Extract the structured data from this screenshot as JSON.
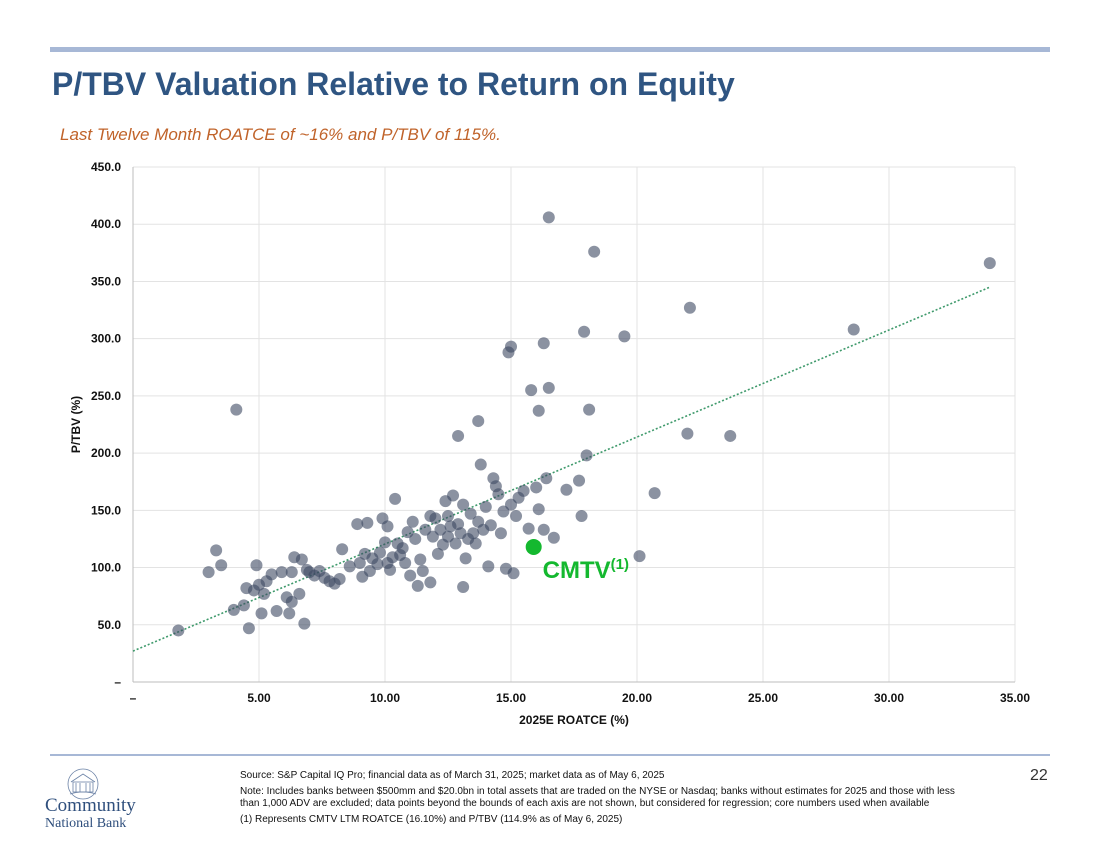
{
  "page": {
    "title": "P/TBV Valuation Relative to Return on Equity",
    "subtitle": "Last Twelve Month ROATCE of ~16% and P/TBV of 115%.",
    "page_number": "22",
    "accent_color": "#2f5582",
    "subtitle_color": "#c0632a",
    "rule_color": "#a7b8d6"
  },
  "footer": {
    "source": "Source: S&P Capital IQ Pro; financial data as of March 31, 2025; market data as of May 6, 2025",
    "note": "Note: Includes banks between $500mm and $20.0bn in total assets that are traded on the NYSE or Nasdaq; banks without estimates for 2025 and those with less than 1,000 ADV are excluded; data points beyond the bounds of each axis are not shown, but considered for regression; core numbers used when available",
    "footnote": "(1) Represents CMTV LTM ROATCE (16.10%) and P/TBV (114.9% as of May 6, 2025)"
  },
  "logo": {
    "line1": "Community",
    "line2": "National Bank",
    "icon": "bank-building-logo"
  },
  "chart_data": {
    "type": "scatter",
    "xlabel": "2025E ROATCE (%)",
    "ylabel": "P/TBV (%)",
    "xlim": [
      0,
      35
    ],
    "ylim": [
      0,
      450
    ],
    "x_ticks": [
      0,
      5,
      10,
      15,
      20,
      25,
      30,
      35
    ],
    "x_tick_labels": [
      "–",
      "5.00",
      "10.00",
      "15.00",
      "20.00",
      "25.00",
      "30.00",
      "35.00"
    ],
    "y_ticks": [
      0,
      50,
      100,
      150,
      200,
      250,
      300,
      350,
      400,
      450
    ],
    "y_tick_labels": [
      "–",
      "50.0",
      "100.0",
      "150.0",
      "200.0",
      "250.0",
      "300.0",
      "350.0",
      "400.0",
      "450.0"
    ],
    "grid": true,
    "point_color": "#3e4a63",
    "trendline": {
      "type": "linear",
      "x": [
        0,
        34
      ],
      "y": [
        27,
        345
      ],
      "color": "#3f9a6c"
    },
    "highlight": {
      "label": "CMTV",
      "superscript": "(1)",
      "x": 15.9,
      "y": 118,
      "color": "#14b82f"
    },
    "points": [
      [
        1.8,
        45
      ],
      [
        3.0,
        96
      ],
      [
        3.3,
        115
      ],
      [
        3.5,
        102
      ],
      [
        4.0,
        63
      ],
      [
        4.1,
        238
      ],
      [
        4.4,
        67
      ],
      [
        4.5,
        82
      ],
      [
        4.6,
        47
      ],
      [
        4.8,
        80
      ],
      [
        4.9,
        102
      ],
      [
        5.0,
        85
      ],
      [
        5.1,
        60
      ],
      [
        5.2,
        77
      ],
      [
        5.3,
        88
      ],
      [
        5.5,
        94
      ],
      [
        5.7,
        62
      ],
      [
        5.9,
        96
      ],
      [
        6.1,
        74
      ],
      [
        6.2,
        60
      ],
      [
        6.3,
        70
      ],
      [
        6.3,
        96
      ],
      [
        6.4,
        109
      ],
      [
        6.6,
        77
      ],
      [
        6.7,
        107
      ],
      [
        6.8,
        51
      ],
      [
        6.9,
        98
      ],
      [
        7.0,
        96
      ],
      [
        7.2,
        93
      ],
      [
        7.4,
        97
      ],
      [
        7.6,
        91
      ],
      [
        7.8,
        88
      ],
      [
        8.0,
        86
      ],
      [
        8.2,
        90
      ],
      [
        8.3,
        116
      ],
      [
        8.6,
        101
      ],
      [
        8.9,
        138
      ],
      [
        9.0,
        104
      ],
      [
        9.1,
        92
      ],
      [
        9.2,
        112
      ],
      [
        9.3,
        139
      ],
      [
        9.4,
        97
      ],
      [
        9.5,
        108
      ],
      [
        9.7,
        103
      ],
      [
        9.8,
        113
      ],
      [
        9.9,
        143
      ],
      [
        10.0,
        122
      ],
      [
        10.1,
        136
      ],
      [
        10.1,
        104
      ],
      [
        10.2,
        98
      ],
      [
        10.3,
        109
      ],
      [
        10.4,
        160
      ],
      [
        10.5,
        121
      ],
      [
        10.6,
        111
      ],
      [
        10.7,
        117
      ],
      [
        10.8,
        104
      ],
      [
        10.9,
        131
      ],
      [
        11.0,
        93
      ],
      [
        11.1,
        140
      ],
      [
        11.2,
        125
      ],
      [
        11.3,
        84
      ],
      [
        11.4,
        107
      ],
      [
        11.5,
        97
      ],
      [
        11.6,
        133
      ],
      [
        11.8,
        87
      ],
      [
        11.8,
        145
      ],
      [
        11.9,
        127
      ],
      [
        12.0,
        143
      ],
      [
        12.1,
        112
      ],
      [
        12.2,
        133
      ],
      [
        12.3,
        120
      ],
      [
        12.4,
        158
      ],
      [
        12.5,
        127
      ],
      [
        12.5,
        145
      ],
      [
        12.6,
        136
      ],
      [
        12.7,
        163
      ],
      [
        12.8,
        121
      ],
      [
        12.9,
        138
      ],
      [
        12.9,
        215
      ],
      [
        13.0,
        130
      ],
      [
        13.1,
        155
      ],
      [
        13.1,
        83
      ],
      [
        13.2,
        108
      ],
      [
        13.3,
        125
      ],
      [
        13.4,
        147
      ],
      [
        13.5,
        130
      ],
      [
        13.6,
        121
      ],
      [
        13.7,
        140
      ],
      [
        13.7,
        228
      ],
      [
        13.8,
        190
      ],
      [
        13.9,
        133
      ],
      [
        14.0,
        153
      ],
      [
        14.1,
        101
      ],
      [
        14.2,
        137
      ],
      [
        14.3,
        178
      ],
      [
        14.4,
        171
      ],
      [
        14.5,
        164
      ],
      [
        14.6,
        130
      ],
      [
        14.7,
        149
      ],
      [
        14.8,
        99
      ],
      [
        14.9,
        288
      ],
      [
        15.0,
        293
      ],
      [
        15.0,
        155
      ],
      [
        15.1,
        95
      ],
      [
        15.2,
        145
      ],
      [
        15.3,
        161
      ],
      [
        15.5,
        167
      ],
      [
        15.7,
        134
      ],
      [
        15.8,
        255
      ],
      [
        16.0,
        170
      ],
      [
        16.1,
        237
      ],
      [
        16.1,
        151
      ],
      [
        16.3,
        296
      ],
      [
        16.3,
        133
      ],
      [
        16.4,
        178
      ],
      [
        16.5,
        257
      ],
      [
        16.5,
        406
      ],
      [
        16.7,
        126
      ],
      [
        17.2,
        168
      ],
      [
        17.7,
        176
      ],
      [
        17.8,
        145
      ],
      [
        17.9,
        306
      ],
      [
        18.0,
        198
      ],
      [
        18.1,
        238
      ],
      [
        18.3,
        376
      ],
      [
        19.5,
        302
      ],
      [
        20.1,
        110
      ],
      [
        20.7,
        165
      ],
      [
        22.0,
        217
      ],
      [
        22.1,
        327
      ],
      [
        23.7,
        215
      ],
      [
        28.6,
        308
      ],
      [
        34.0,
        366
      ]
    ]
  }
}
